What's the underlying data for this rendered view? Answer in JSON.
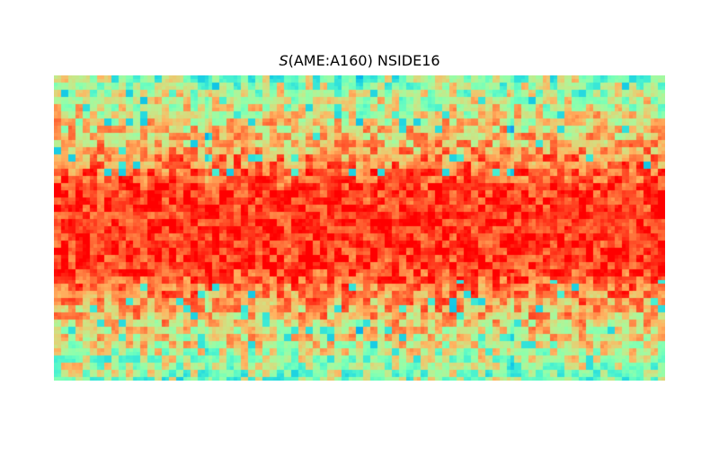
{
  "chart_data": {
    "type": "heatmap",
    "title": {
      "symbol": "S",
      "text": "(AME:A160) NSIDE16"
    },
    "projection": "cartesian (equirectangular) full-sky map",
    "nside": 16,
    "grid_shape": [
      128,
      256
    ],
    "colormap": "rainbow",
    "colorbar": "none",
    "axes_visible": false,
    "value_range": [
      0,
      1
    ],
    "structure": {
      "description": "Values peak (red) in a horizontal band along the map's equator and decrease toward the top and bottom edges (orange/yellow to green, with scattered cyan-blue patches); HEALPix pixel pattern with 4 face seams along longitude.",
      "equatorial_band_level": 0.93,
      "mid_latitude_level": 0.72,
      "polar_level": 0.52,
      "minimum_level": 0.28
    },
    "colors": {
      "red": "#ff2200",
      "orange": "#ff9966",
      "yellow_green": "#ccdd88",
      "green": "#88ffaa",
      "cyan": "#44ddee",
      "blue": "#22aaee"
    }
  }
}
